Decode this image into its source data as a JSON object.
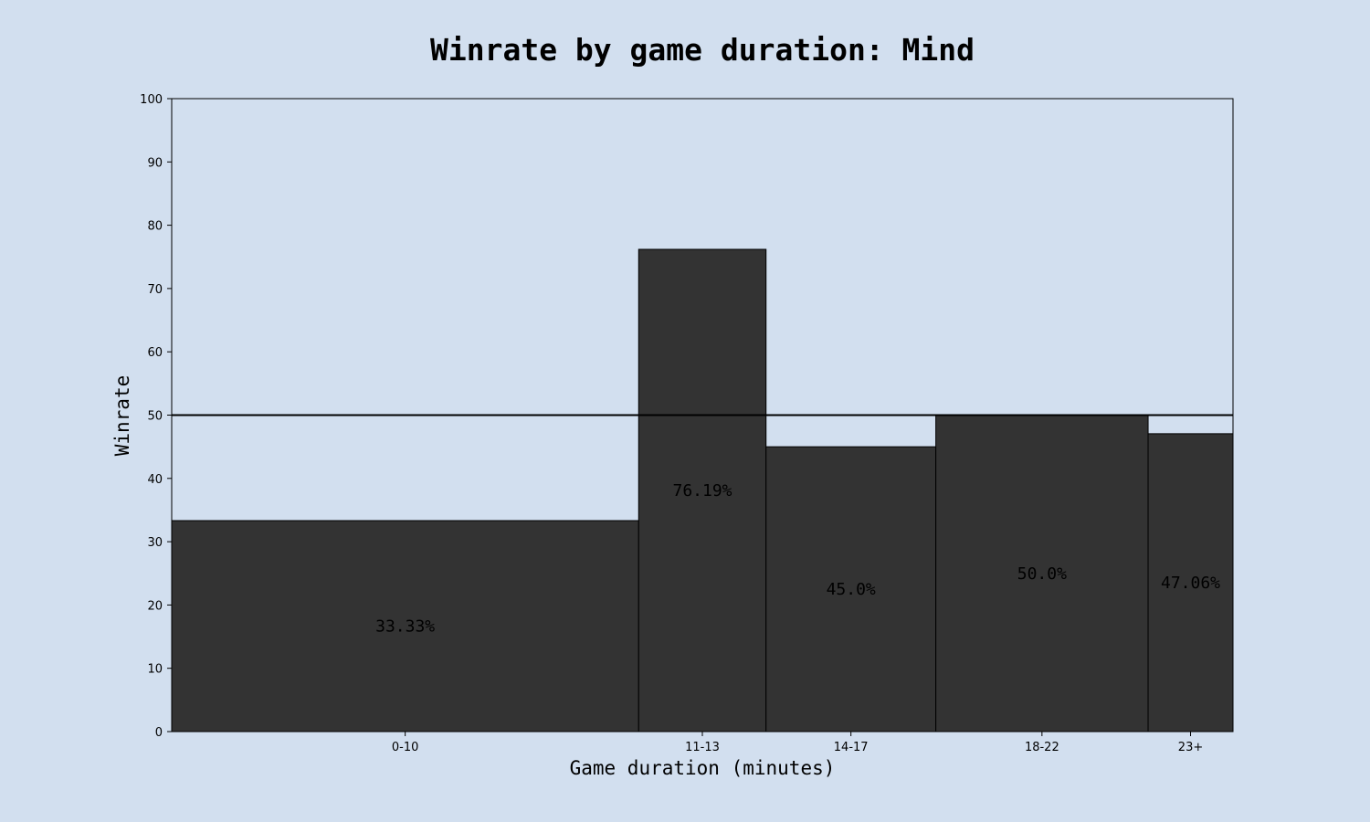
{
  "chart_data": {
    "type": "bar",
    "title": "Winrate by game duration: Mind",
    "xlabel": "Game duration (minutes)",
    "ylabel": "Winrate",
    "categories": [
      "0-10",
      "11-13",
      "14-17",
      "18-22",
      "23+"
    ],
    "bin_edges": [
      0,
      11,
      14,
      18,
      23,
      25
    ],
    "values": [
      33.33,
      76.19,
      45.0,
      50.0,
      47.06
    ],
    "data_labels": [
      "33.33%",
      "76.19%",
      "45.0%",
      "50.0%",
      "47.06%"
    ],
    "ylim": [
      0,
      100
    ],
    "yticks": [
      0,
      10,
      20,
      30,
      40,
      50,
      60,
      70,
      80,
      90,
      100
    ],
    "reference_line": 50,
    "grid": false,
    "colors": {
      "background": "#d2dfef",
      "bar_fill": "#333333",
      "bar_edge": "#000000"
    }
  }
}
